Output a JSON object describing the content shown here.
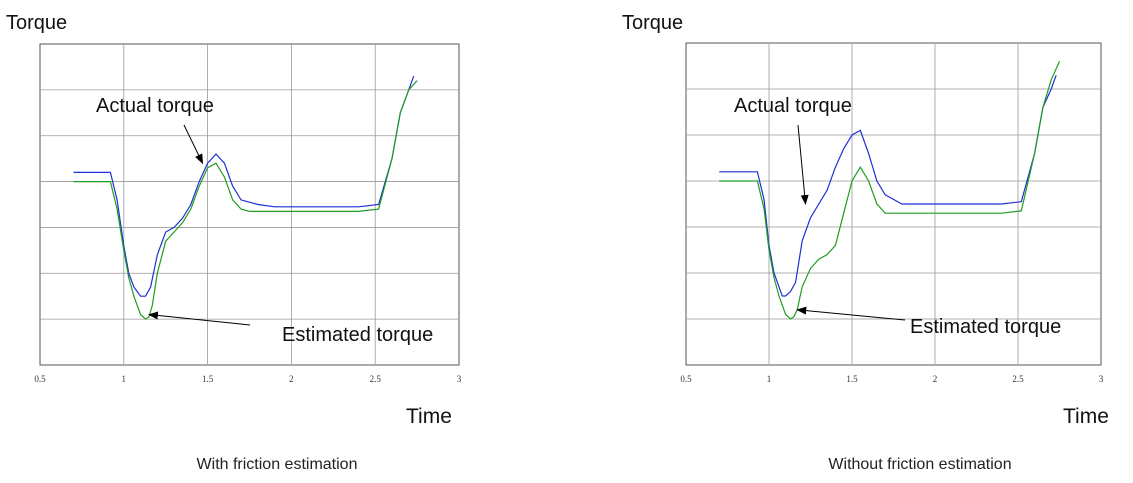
{
  "chart_data": [
    {
      "type": "line",
      "caption": "With friction estimation",
      "ylabel": "Torque",
      "xlabel": "Time",
      "xlim": [
        0.5,
        3
      ],
      "ylim": [
        0,
        7
      ],
      "xticks": [
        0.5,
        1,
        1.5,
        2,
        2.5,
        3
      ],
      "grid": true,
      "annotations": [
        {
          "text": "Actual torque",
          "points_to": [
            1.47,
            4.4
          ]
        },
        {
          "text": "Estimated torque",
          "points_to": [
            1.15,
            1.1
          ]
        }
      ],
      "series": [
        {
          "color": "#1f2fd6",
          "x": [
            0.7,
            0.9,
            0.92,
            0.96,
            1.0,
            1.03,
            1.06,
            1.08,
            1.1,
            1.13,
            1.16,
            1.2,
            1.25,
            1.3,
            1.35,
            1.4,
            1.45,
            1.5,
            1.55,
            1.6,
            1.65,
            1.7,
            1.75,
            1.8,
            1.9,
            2.0,
            2.1,
            2.2,
            2.3,
            2.4,
            2.52,
            2.6,
            2.65,
            2.7,
            2.73
          ],
          "y": [
            4.2,
            4.2,
            4.2,
            3.6,
            2.6,
            2.0,
            1.7,
            1.6,
            1.5,
            1.5,
            1.7,
            2.4,
            2.9,
            3.0,
            3.2,
            3.5,
            4.0,
            4.4,
            4.6,
            4.4,
            3.9,
            3.6,
            3.55,
            3.5,
            3.45,
            3.45,
            3.45,
            3.45,
            3.45,
            3.45,
            3.5,
            4.5,
            5.5,
            6.0,
            6.3
          ]
        },
        {
          "color": "#1f9d1f",
          "x": [
            0.7,
            0.92,
            0.96,
            1.0,
            1.03,
            1.06,
            1.08,
            1.1,
            1.13,
            1.15,
            1.17,
            1.2,
            1.25,
            1.3,
            1.35,
            1.4,
            1.45,
            1.5,
            1.55,
            1.6,
            1.65,
            1.7,
            1.75,
            1.8,
            1.9,
            2.0,
            2.1,
            2.2,
            2.3,
            2.4,
            2.52,
            2.6,
            2.65,
            2.7,
            2.75
          ],
          "y": [
            4.0,
            4.0,
            3.4,
            2.5,
            1.9,
            1.5,
            1.3,
            1.1,
            1.0,
            1.05,
            1.3,
            2.0,
            2.7,
            2.9,
            3.1,
            3.4,
            3.9,
            4.3,
            4.4,
            4.1,
            3.6,
            3.4,
            3.35,
            3.35,
            3.35,
            3.35,
            3.35,
            3.35,
            3.35,
            3.35,
            3.4,
            4.5,
            5.5,
            6.0,
            6.2
          ]
        }
      ]
    },
    {
      "type": "line",
      "caption": "Without friction estimation",
      "ylabel": "Torque",
      "xlabel": "Time",
      "xlim": [
        0.5,
        3
      ],
      "ylim": [
        0,
        7
      ],
      "xticks": [
        0.5,
        1,
        1.5,
        2,
        2.5,
        3
      ],
      "grid": true,
      "annotations": [
        {
          "text": "Actual torque",
          "points_to": [
            1.22,
            3.5
          ]
        },
        {
          "text": "Estimated torque",
          "points_to": [
            1.17,
            1.2
          ]
        }
      ],
      "series": [
        {
          "color": "#1f2fd6",
          "x": [
            0.7,
            0.9,
            0.93,
            0.97,
            1.0,
            1.03,
            1.06,
            1.08,
            1.1,
            1.13,
            1.16,
            1.2,
            1.25,
            1.3,
            1.35,
            1.4,
            1.45,
            1.5,
            1.55,
            1.6,
            1.65,
            1.7,
            1.75,
            1.8,
            1.9,
            2.0,
            2.1,
            2.2,
            2.3,
            2.4,
            2.52,
            2.6,
            2.65,
            2.7,
            2.73
          ],
          "y": [
            4.2,
            4.2,
            4.2,
            3.6,
            2.6,
            2.0,
            1.7,
            1.5,
            1.5,
            1.6,
            1.8,
            2.7,
            3.2,
            3.5,
            3.8,
            4.3,
            4.7,
            5.0,
            5.1,
            4.6,
            4.0,
            3.7,
            3.6,
            3.5,
            3.5,
            3.5,
            3.5,
            3.5,
            3.5,
            3.5,
            3.55,
            4.6,
            5.6,
            6.0,
            6.3
          ]
        },
        {
          "color": "#1f9d1f",
          "x": [
            0.7,
            0.93,
            0.97,
            1.0,
            1.03,
            1.06,
            1.08,
            1.1,
            1.13,
            1.15,
            1.17,
            1.2,
            1.25,
            1.3,
            1.35,
            1.4,
            1.45,
            1.5,
            1.55,
            1.6,
            1.65,
            1.7,
            1.75,
            1.8,
            1.9,
            2.0,
            2.1,
            2.2,
            2.3,
            2.4,
            2.52,
            2.6,
            2.65,
            2.7,
            2.75
          ],
          "y": [
            4.0,
            4.0,
            3.4,
            2.5,
            1.9,
            1.5,
            1.3,
            1.1,
            1.0,
            1.05,
            1.2,
            1.7,
            2.1,
            2.3,
            2.4,
            2.6,
            3.3,
            4.0,
            4.3,
            4.0,
            3.5,
            3.3,
            3.3,
            3.3,
            3.3,
            3.3,
            3.3,
            3.3,
            3.3,
            3.3,
            3.35,
            4.6,
            5.6,
            6.2,
            6.6
          ]
        }
      ]
    }
  ]
}
